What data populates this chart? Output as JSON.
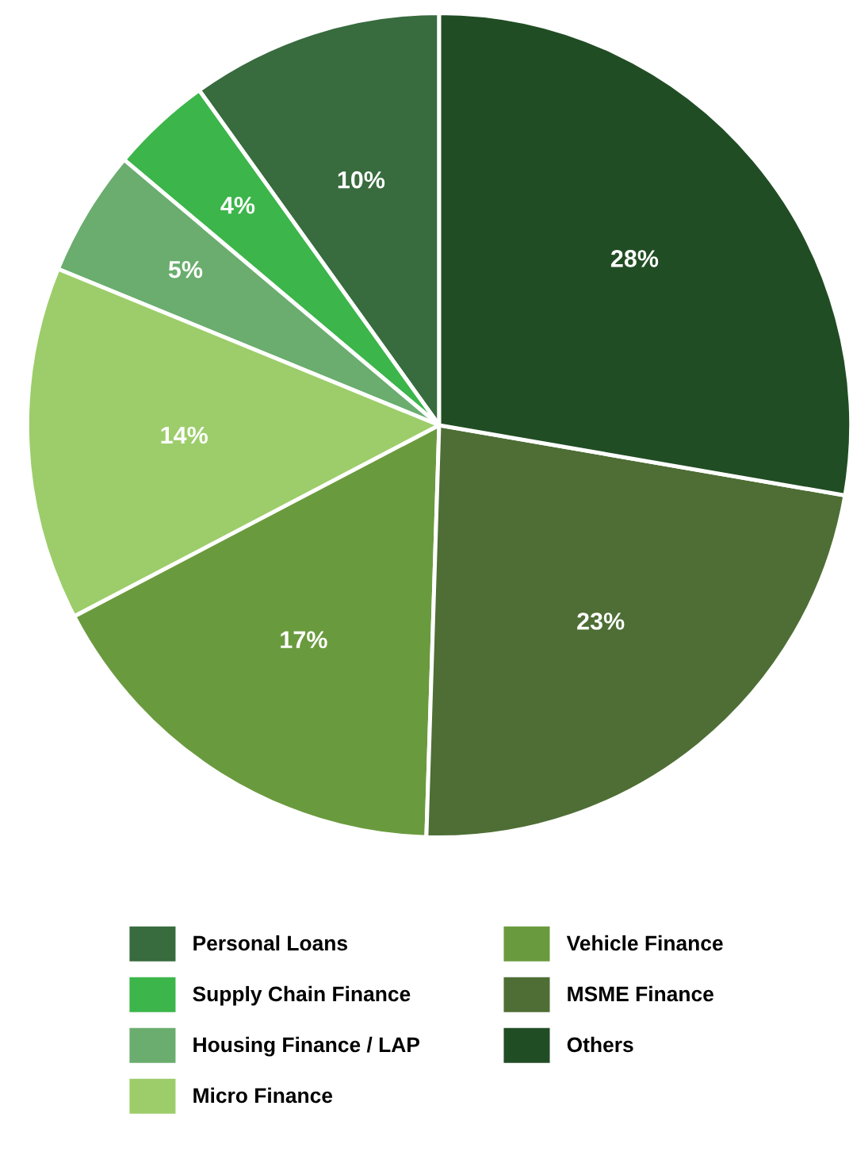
{
  "chart_data": {
    "type": "pie",
    "categories": [
      "Personal Loans",
      "Supply Chain Finance",
      "Housing Finance / LAP",
      "Micro Finance",
      "Vehicle Finance",
      "MSME Finance",
      "Others"
    ],
    "values": [
      10,
      4,
      5,
      14,
      17,
      23,
      28
    ],
    "value_labels": [
      "10%",
      "4%",
      "5%",
      "14%",
      "17%",
      "23%",
      "28%"
    ],
    "colors": [
      "#386b3e",
      "#3cb54a",
      "#6aad6e",
      "#9ccd6a",
      "#6a9a3e",
      "#4e6e35",
      "#214d24"
    ],
    "legend": "bottom"
  }
}
